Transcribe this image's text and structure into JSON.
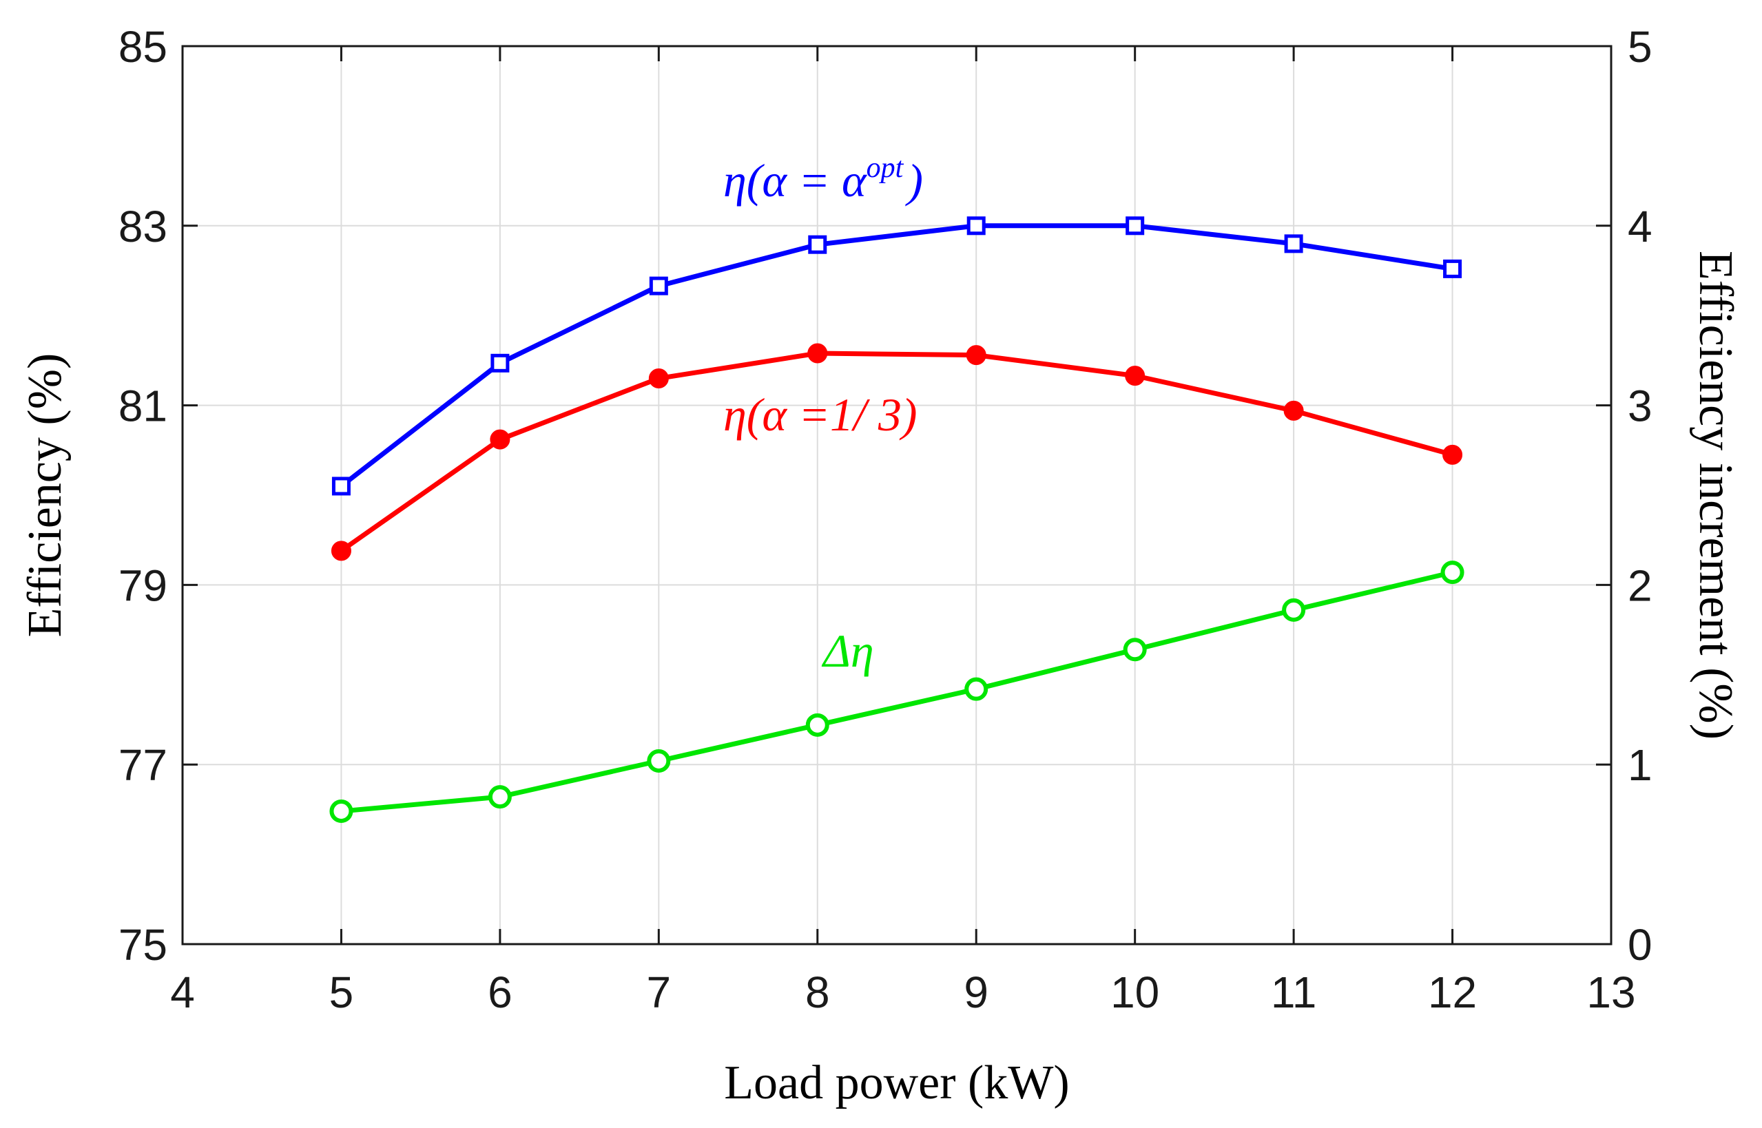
{
  "chart_data": {
    "type": "line",
    "xlabel": "Load power (kW)",
    "ylabel": "Efficiency (%)",
    "y2label": "Efficiency increment (%)",
    "xlim": [
      4,
      13
    ],
    "ylim": [
      75,
      85
    ],
    "y2lim": [
      0,
      5
    ],
    "xticks": [
      "4",
      "5",
      "6",
      "7",
      "8",
      "9",
      "10",
      "11",
      "12",
      "13"
    ],
    "yticks": [
      "75",
      "77",
      "79",
      "81",
      "83",
      "85"
    ],
    "y2ticks": [
      "0",
      "1",
      "2",
      "3",
      "4",
      "5"
    ],
    "grid": true,
    "x": [
      5,
      6,
      7,
      8,
      9,
      10,
      11,
      12
    ],
    "series": [
      {
        "name": "eta-opt",
        "axis": "left",
        "color": "#0000ff",
        "marker": "square",
        "values": [
          80.1,
          81.47,
          82.33,
          82.79,
          83.0,
          83.0,
          82.8,
          82.52
        ]
      },
      {
        "name": "eta-1/3",
        "axis": "left",
        "color": "#ff0000",
        "marker": "filled-circle",
        "values": [
          79.38,
          80.62,
          81.3,
          81.58,
          81.56,
          81.33,
          80.94,
          80.45
        ]
      },
      {
        "name": "delta-eta",
        "axis": "right",
        "color": "#00e600",
        "marker": "circle",
        "values": [
          0.74,
          0.82,
          1.02,
          1.22,
          1.42,
          1.64,
          1.86,
          2.07
        ]
      }
    ],
    "annotations": {
      "eta_opt": {
        "prefix": "η(α = α",
        "sup": "opt",
        "suffix": ")"
      },
      "eta_third": "η(α =1/ 3)",
      "delta": "Δη"
    }
  }
}
